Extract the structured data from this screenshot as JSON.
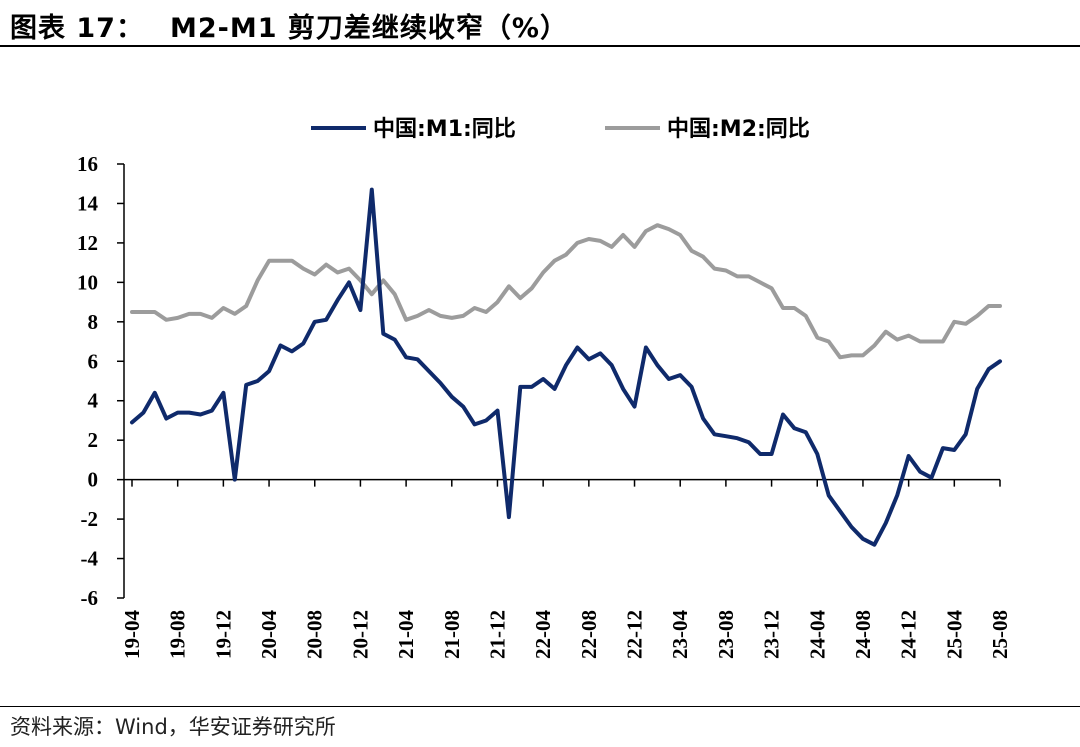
{
  "header": {
    "figure_no": "图表 17：",
    "title": "M2-M1 剪刀差继续收窄（%）"
  },
  "footer": {
    "source": "资料来源：Wind，华安证券研究所"
  },
  "colors": {
    "m1": "#0f2a6b",
    "m2": "#9c9c9c"
  },
  "chart_data": {
    "type": "line",
    "title": "M2-M1 剪刀差继续收窄（%）",
    "xlabel": "",
    "ylabel": "",
    "ylim": [
      -6,
      16
    ],
    "yticks": [
      "-6",
      "-4",
      "-2",
      "0",
      "2",
      "4",
      "6",
      "8",
      "10",
      "12",
      "14",
      "16"
    ],
    "xticks": [
      "19-04",
      "19-08",
      "19-12",
      "20-04",
      "20-08",
      "20-12",
      "21-04",
      "21-08",
      "21-12",
      "22-04",
      "22-08",
      "22-12",
      "23-04",
      "23-08",
      "23-12",
      "24-04",
      "24-08",
      "24-12",
      "25-04",
      "25-08"
    ],
    "x": [
      "19-04",
      "19-05",
      "19-06",
      "19-07",
      "19-08",
      "19-09",
      "19-10",
      "19-11",
      "19-12",
      "20-01",
      "20-02",
      "20-03",
      "20-04",
      "20-05",
      "20-06",
      "20-07",
      "20-08",
      "20-09",
      "20-10",
      "20-11",
      "20-12",
      "21-01",
      "21-02",
      "21-03",
      "21-04",
      "21-05",
      "21-06",
      "21-07",
      "21-08",
      "21-09",
      "21-10",
      "21-11",
      "21-12",
      "22-01",
      "22-02",
      "22-03",
      "22-04",
      "22-05",
      "22-06",
      "22-07",
      "22-08",
      "22-09",
      "22-10",
      "22-11",
      "22-12",
      "23-01",
      "23-02",
      "23-03",
      "23-04",
      "23-05",
      "23-06",
      "23-07",
      "23-08",
      "23-09",
      "23-10",
      "23-11",
      "23-12",
      "24-01",
      "24-02",
      "24-03",
      "24-04",
      "24-05",
      "24-06",
      "24-07",
      "24-08",
      "24-09",
      "24-10",
      "24-11",
      "24-12",
      "25-01",
      "25-02",
      "25-03",
      "25-04",
      "25-05",
      "25-06",
      "25-07",
      "25-08"
    ],
    "legend_position": "top",
    "series": [
      {
        "name": "中国:M1:同比",
        "color_key": "m1",
        "values": [
          2.9,
          3.4,
          4.4,
          3.1,
          3.4,
          3.4,
          3.3,
          3.5,
          4.4,
          0.0,
          4.8,
          5.0,
          5.5,
          6.8,
          6.5,
          6.9,
          8.0,
          8.1,
          9.1,
          10.0,
          8.6,
          14.7,
          7.4,
          7.1,
          6.2,
          6.1,
          5.5,
          4.9,
          4.2,
          3.7,
          2.8,
          3.0,
          3.5,
          -1.9,
          4.7,
          4.7,
          5.1,
          4.6,
          5.8,
          6.7,
          6.1,
          6.4,
          5.8,
          4.6,
          3.7,
          6.7,
          5.8,
          5.1,
          5.3,
          4.7,
          3.1,
          2.3,
          2.2,
          2.1,
          1.9,
          1.3,
          1.3,
          3.3,
          2.6,
          2.4,
          1.3,
          -0.8,
          -1.6,
          -2.4,
          -3.0,
          -3.3,
          -2.2,
          -0.8,
          1.2,
          0.4,
          0.1,
          1.6,
          1.5,
          2.3,
          4.6,
          5.6,
          6.0
        ]
      },
      {
        "name": "中国:M2:同比",
        "color_key": "m2",
        "values": [
          8.5,
          8.5,
          8.5,
          8.1,
          8.2,
          8.4,
          8.4,
          8.2,
          8.7,
          8.4,
          8.8,
          10.1,
          11.1,
          11.1,
          11.1,
          10.7,
          10.4,
          10.9,
          10.5,
          10.7,
          10.1,
          9.4,
          10.1,
          9.4,
          8.1,
          8.3,
          8.6,
          8.3,
          8.2,
          8.3,
          8.7,
          8.5,
          9.0,
          9.8,
          9.2,
          9.7,
          10.5,
          11.1,
          11.4,
          12.0,
          12.2,
          12.1,
          11.8,
          12.4,
          11.8,
          12.6,
          12.9,
          12.7,
          12.4,
          11.6,
          11.3,
          10.7,
          10.6,
          10.3,
          10.3,
          10.0,
          9.7,
          8.7,
          8.7,
          8.3,
          7.2,
          7.0,
          6.2,
          6.3,
          6.3,
          6.8,
          7.5,
          7.1,
          7.3,
          7.0,
          7.0,
          7.0,
          8.0,
          7.9,
          8.3,
          8.8,
          8.8
        ]
      }
    ]
  }
}
